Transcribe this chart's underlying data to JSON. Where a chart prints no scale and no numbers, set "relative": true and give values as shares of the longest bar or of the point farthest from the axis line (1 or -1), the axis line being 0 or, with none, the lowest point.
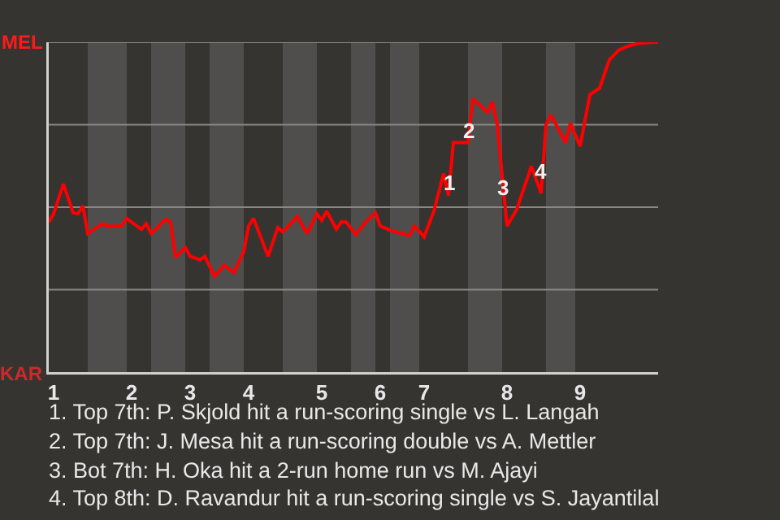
{
  "chart_data": {
    "type": "line",
    "relative": true,
    "categories": [
      null,
      "1",
      null,
      null,
      null,
      null,
      null,
      null,
      null,
      null,
      null,
      null,
      null,
      null,
      null,
      null,
      null,
      "2",
      null,
      null,
      null,
      null,
      null,
      null,
      null,
      null,
      null,
      null,
      null,
      "3",
      null,
      null,
      null,
      null,
      null,
      null,
      null,
      null,
      null,
      null,
      null,
      "4",
      null,
      null,
      null,
      null,
      null,
      null,
      null,
      null,
      null,
      null,
      null,
      null,
      null,
      null,
      "5",
      null,
      null,
      null,
      null,
      null,
      null,
      null,
      null,
      null,
      null,
      null,
      "6",
      null,
      null,
      null,
      null,
      null,
      null,
      null,
      null,
      "7",
      null,
      null,
      null,
      null,
      null,
      null,
      null,
      null,
      null,
      null,
      null,
      null,
      null,
      null,
      null,
      null,
      "8",
      null,
      null,
      null,
      null,
      null,
      null,
      null,
      null,
      null,
      null,
      null,
      null,
      null,
      null,
      "9",
      null,
      null,
      null,
      null,
      null,
      null,
      null,
      null,
      null,
      null,
      null,
      null,
      null,
      null,
      null,
      null
    ],
    "series": [
      {
        "color": "#ff0000",
        "values": [
          0.455,
          0.48,
          0.525,
          0.57,
          0.527,
          0.483,
          0.48,
          0.504,
          0.42,
          0.43,
          0.44,
          0.45,
          0.443,
          0.443,
          0.443,
          0.443,
          0.466,
          0.455,
          0.444,
          0.433,
          0.45,
          0.42,
          0.434,
          0.449,
          0.463,
          0.455,
          0.348,
          0.363,
          0.378,
          0.351,
          0.346,
          0.34,
          0.351,
          0.321,
          0.29,
          0.307,
          0.324,
          0.313,
          0.302,
          0.334,
          0.365,
          0.443,
          0.466,
          0.428,
          0.389,
          0.351,
          0.395,
          0.438,
          0.425,
          0.44,
          0.456,
          0.471,
          0.446,
          0.42,
          0.45,
          0.48,
          0.46,
          0.488,
          0.461,
          0.433,
          0.455,
          0.455,
          0.436,
          0.417,
          0.436,
          0.455,
          0.469,
          0.483,
          0.443,
          0.437,
          0.43,
          0.426,
          0.422,
          0.418,
          0.414,
          0.443,
          0.427,
          0.41,
          0.449,
          0.488,
          0.545,
          0.602,
          0.535,
          0.696,
          0.696,
          0.696,
          0.696,
          0.829,
          0.815,
          0.801,
          0.787,
          0.819,
          0.75,
          0.597,
          0.443,
          0.468,
          0.493,
          0.537,
          0.58,
          0.624,
          0.583,
          0.542,
          0.75,
          0.78,
          0.752,
          0.724,
          0.696,
          0.755,
          0.72,
          0.685,
          0.763,
          0.841,
          0.851,
          0.861,
          0.904,
          0.947,
          0.962,
          0.977,
          0.983,
          0.989,
          0.993,
          0.997,
          0.998,
          0.999,
          1,
          1
        ]
      }
    ],
    "marker": "none",
    "ref_lines": [
      {
        "axis": "y",
        "value": 0.25,
        "color": "#8a8886"
      },
      {
        "axis": "y",
        "value": 0.5,
        "color": "#8a8886"
      },
      {
        "axis": "y",
        "value": 0.75,
        "color": "#8a8886"
      },
      {
        "axis": "y",
        "value": 1,
        "color": "#8a8886"
      }
    ],
    "annotations": [
      "MEL",
      "KAR",
      {
        "text": "1",
        "y": 0.576
      },
      {
        "text": "2",
        "y": 0.73
      },
      {
        "text": "3",
        "y": 0.56
      },
      {
        "text": "4",
        "y": 0.61
      },
      "1. Top 7th: P. Skjold hit a run-scoring single vs L. Langah",
      "2. Top 7th: J. Mesa hit a run-scoring double vs A. Mettler",
      "3. Bot 7th: H. Oka hit a 2-run home run vs M. Ajayi",
      "4. Top 8th: D. Ravandur hit a run-scoring single vs S. Jayantilal"
    ]
  }
}
